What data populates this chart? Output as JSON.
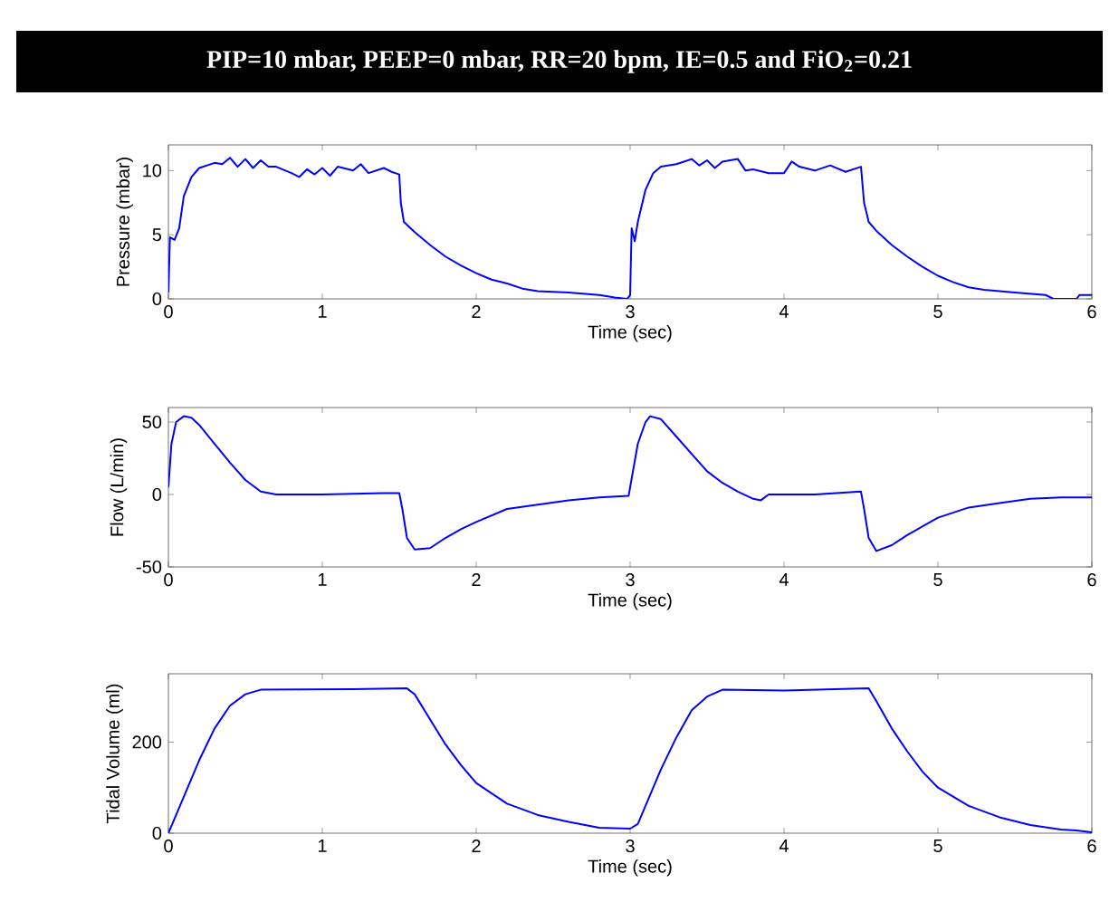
{
  "chart_data": [
    {
      "type": "line",
      "title": "PIP=10 mbar, PEEP=0 mbar, RR=20 bpm, IE=0.5 and FiO$_{2}$=0.21",
      "xlabel": "Time (sec)",
      "ylabel": "Pressure (mbar)",
      "xlim": [
        0,
        6
      ],
      "ylim": [
        0,
        12
      ],
      "xticks": [
        0,
        1,
        2,
        3,
        4,
        5,
        6
      ],
      "yticks": [
        0,
        5,
        10
      ],
      "color": "#0000ff",
      "x": [
        0,
        0.01,
        0.04,
        0.07,
        0.1,
        0.15,
        0.2,
        0.3,
        0.35,
        0.4,
        0.45,
        0.5,
        0.55,
        0.6,
        0.65,
        0.7,
        0.8,
        0.85,
        0.9,
        0.95,
        1.0,
        1.05,
        1.1,
        1.2,
        1.25,
        1.3,
        1.4,
        1.45,
        1.5,
        1.51,
        1.53,
        1.6,
        1.7,
        1.8,
        1.9,
        2.0,
        2.1,
        2.2,
        2.3,
        2.4,
        2.6,
        2.8,
        2.9,
        2.98,
        3.0,
        3.01,
        3.03,
        3.05,
        3.1,
        3.15,
        3.2,
        3.3,
        3.4,
        3.45,
        3.5,
        3.55,
        3.6,
        3.7,
        3.75,
        3.8,
        3.9,
        4.0,
        4.05,
        4.1,
        4.2,
        4.3,
        4.4,
        4.5,
        4.52,
        4.55,
        4.6,
        4.7,
        4.8,
        4.9,
        5.0,
        5.1,
        5.2,
        5.3,
        5.5,
        5.7,
        5.75,
        5.9,
        5.92,
        6.0
      ],
      "values": [
        0.5,
        4.8,
        4.6,
        5.5,
        8,
        9.5,
        10.2,
        10.6,
        10.5,
        11.0,
        10.3,
        10.9,
        10.2,
        10.8,
        10.3,
        10.3,
        9.8,
        9.5,
        10.1,
        9.7,
        10.2,
        9.6,
        10.3,
        10.0,
        10.5,
        9.8,
        10.2,
        9.9,
        9.7,
        7.5,
        6.0,
        5.2,
        4.2,
        3.3,
        2.6,
        2.0,
        1.5,
        1.2,
        0.8,
        0.6,
        0.5,
        0.3,
        0.1,
        0,
        0.3,
        5.5,
        4.5,
        6,
        8.5,
        9.8,
        10.3,
        10.5,
        10.9,
        10.4,
        10.8,
        10.2,
        10.7,
        10.9,
        10.0,
        10.1,
        9.8,
        9.8,
        10.7,
        10.3,
        10.0,
        10.4,
        9.9,
        10.3,
        7.5,
        6,
        5.3,
        4.2,
        3.3,
        2.5,
        1.8,
        1.3,
        0.9,
        0.7,
        0.5,
        0.3,
        0,
        0,
        0.3,
        0.3
      ]
    },
    {
      "type": "line",
      "xlabel": "Time (sec)",
      "ylabel": "Flow (L/min)",
      "xlim": [
        0,
        6
      ],
      "ylim": [
        -50,
        60
      ],
      "xticks": [
        0,
        1,
        2,
        3,
        4,
        5,
        6
      ],
      "yticks": [
        -50,
        0,
        50
      ],
      "color": "#0000ff",
      "x": [
        0,
        0.02,
        0.05,
        0.1,
        0.15,
        0.2,
        0.3,
        0.4,
        0.5,
        0.6,
        0.7,
        1.0,
        1.4,
        1.5,
        1.52,
        1.55,
        1.6,
        1.7,
        1.8,
        1.9,
        2.0,
        2.2,
        2.4,
        2.6,
        2.8,
        2.99,
        3.0,
        3.05,
        3.1,
        3.13,
        3.2,
        3.3,
        3.4,
        3.5,
        3.6,
        3.7,
        3.8,
        3.85,
        3.9,
        4.2,
        4.5,
        4.52,
        4.55,
        4.6,
        4.7,
        4.8,
        4.9,
        5.0,
        5.2,
        5.4,
        5.6,
        5.8,
        6.0
      ],
      "values": [
        5,
        35,
        50,
        54,
        53,
        48,
        35,
        22,
        10,
        2,
        0,
        0,
        1,
        1,
        -10,
        -30,
        -38,
        -37,
        -30,
        -24,
        -19,
        -10,
        -7,
        -4,
        -2,
        -1,
        5,
        35,
        50,
        54,
        52,
        40,
        28,
        16,
        8,
        2,
        -3,
        -4,
        0,
        0,
        2,
        -10,
        -30,
        -39,
        -35,
        -28,
        -22,
        -16,
        -9,
        -6,
        -3,
        -2,
        -2
      ]
    },
    {
      "type": "line",
      "xlabel": "Time (sec)",
      "ylabel": "Tidal Volume (ml)",
      "xlim": [
        0,
        6
      ],
      "ylim": [
        0,
        350
      ],
      "xticks": [
        0,
        1,
        2,
        3,
        4,
        5,
        6
      ],
      "yticks": [
        0,
        200
      ],
      "color": "#0000ff",
      "x": [
        0,
        0.1,
        0.2,
        0.3,
        0.4,
        0.5,
        0.6,
        1.2,
        1.55,
        1.6,
        1.7,
        1.8,
        1.9,
        2.0,
        2.2,
        2.4,
        2.6,
        2.8,
        3.0,
        3.05,
        3.1,
        3.2,
        3.3,
        3.4,
        3.5,
        3.6,
        4.0,
        4.55,
        4.6,
        4.7,
        4.8,
        4.9,
        5.0,
        5.2,
        5.4,
        5.6,
        5.8,
        5.9,
        6.0
      ],
      "values": [
        0,
        80,
        160,
        230,
        280,
        305,
        315,
        316,
        318,
        305,
        250,
        195,
        150,
        110,
        65,
        40,
        25,
        12,
        10,
        20,
        60,
        140,
        210,
        270,
        300,
        315,
        313,
        318,
        290,
        230,
        180,
        135,
        100,
        60,
        35,
        18,
        8,
        6,
        2
      ]
    }
  ]
}
